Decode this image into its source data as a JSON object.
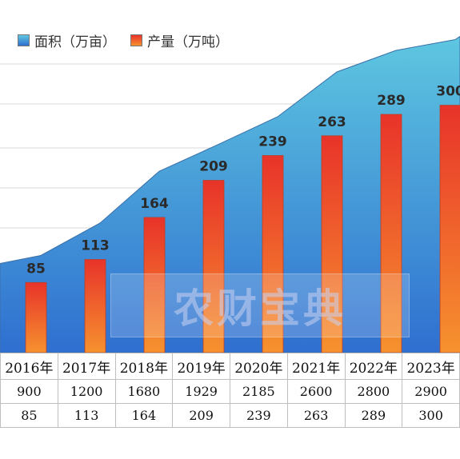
{
  "title": "",
  "legend": {
    "area_label": "面积（万亩）",
    "bar_label": "产量（万吨）"
  },
  "watermark": "农财宝典",
  "colors": {
    "area_top": "#5ec7e0",
    "area_bottom": "#2f6fd0",
    "bar_top": "#e8332a",
    "bar_bottom": "#f6922e",
    "grid": "#d9d9d9"
  },
  "chart_data": {
    "type": "bar",
    "categories": [
      "2016年",
      "2017年",
      "2018年",
      "2019年",
      "2020年",
      "2021年",
      "2022年",
      "2023年"
    ],
    "series": [
      {
        "name": "面积（万亩）",
        "type": "area",
        "values": [
          900,
          1200,
          1680,
          1929,
          2185,
          2600,
          2800,
          2900
        ]
      },
      {
        "name": "产量（万吨）",
        "type": "bar",
        "values": [
          85,
          113,
          164,
          209,
          239,
          263,
          289,
          300
        ]
      }
    ],
    "title": "",
    "xlabel": "",
    "ylabel": "",
    "grid": true,
    "legend_position": "top-left"
  },
  "table": {
    "rows": [
      {
        "cells": [
          "2016年",
          "2017年",
          "2018年",
          "2019年",
          "2020年",
          "2021年",
          "2022年",
          "2023年"
        ]
      },
      {
        "cells": [
          "900",
          "1200",
          "1680",
          "1929",
          "2185",
          "2600",
          "2800",
          "2900"
        ]
      },
      {
        "cells": [
          "85",
          "113",
          "164",
          "209",
          "239",
          "263",
          "289",
          "300"
        ]
      }
    ]
  }
}
